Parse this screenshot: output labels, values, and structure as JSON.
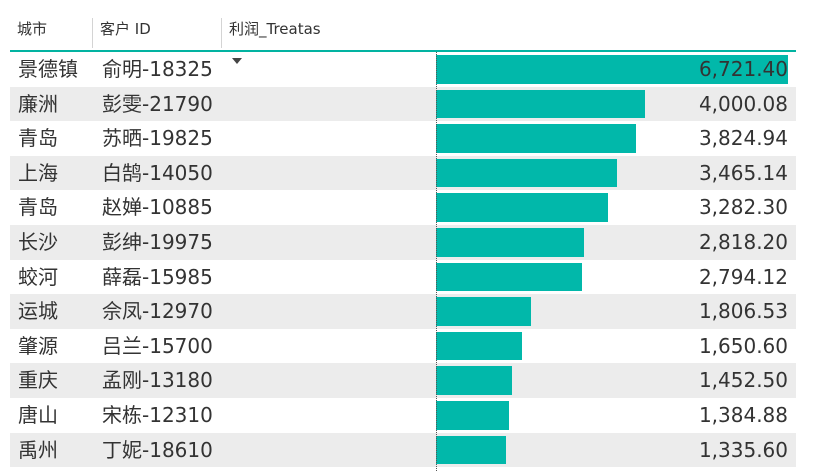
{
  "header": {
    "city_label": "城市",
    "customer_label": "客户 ID",
    "profit_label": "利润_Treatas"
  },
  "colors": {
    "bar": "#01b8aa",
    "accent": "#02b3a1",
    "row_alt": "#ececec"
  },
  "chart_data": {
    "type": "table",
    "columns": [
      "城市",
      "客户 ID",
      "利润_Treatas"
    ],
    "sort": {
      "column": "利润_Treatas",
      "order": "descending"
    },
    "rows": [
      {
        "city": "景德镇",
        "customer": "俞明-18325",
        "profit": 6721.4,
        "profit_label": "6,721.40"
      },
      {
        "city": "廉洲",
        "customer": "彭雯-21790",
        "profit": 4000.08,
        "profit_label": "4,000.08"
      },
      {
        "city": "青岛",
        "customer": "苏晒-19825",
        "profit": 3824.94,
        "profit_label": "3,824.94"
      },
      {
        "city": "上海",
        "customer": "白鹄-14050",
        "profit": 3465.14,
        "profit_label": "3,465.14"
      },
      {
        "city": "青岛",
        "customer": "赵婵-10885",
        "profit": 3282.3,
        "profit_label": "3,282.30"
      },
      {
        "city": "长沙",
        "customer": "彭绅-19975",
        "profit": 2818.2,
        "profit_label": "2,818.20"
      },
      {
        "city": "蛟河",
        "customer": "薛磊-15985",
        "profit": 2794.12,
        "profit_label": "2,794.12"
      },
      {
        "city": "运城",
        "customer": "佘凤-12970",
        "profit": 1806.53,
        "profit_label": "1,806.53"
      },
      {
        "city": "肇源",
        "customer": "吕兰-15700",
        "profit": 1650.6,
        "profit_label": "1,650.60"
      },
      {
        "city": "重庆",
        "customer": "孟刚-13180",
        "profit": 1452.5,
        "profit_label": "1,452.50"
      },
      {
        "city": "唐山",
        "customer": "宋栋-12310",
        "profit": 1384.88,
        "profit_label": "1,384.88"
      },
      {
        "city": "禹州",
        "customer": "丁妮-18610",
        "profit": 1335.6,
        "profit_label": "1,335.60"
      }
    ]
  }
}
